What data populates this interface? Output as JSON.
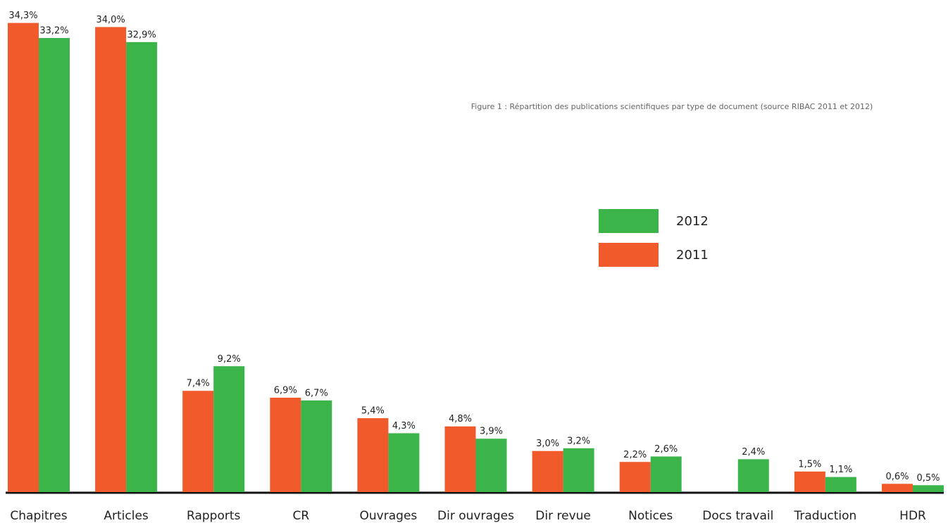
{
  "chart_data": {
    "type": "bar",
    "title": "Figure 1 : Répartition des publications scientifiques par type de document (source RIBAC 2011 et 2012)",
    "categories": [
      "Chapitres",
      "Articles",
      "Rapports",
      "CR",
      "Ouvrages",
      "Dir ouvrages",
      "Dir revue",
      "Notices",
      "Docs travail",
      "Traduction",
      "HDR"
    ],
    "series": [
      {
        "name": "2011",
        "color": "#f15a2b",
        "values": [
          34.3,
          34.0,
          7.4,
          6.9,
          5.4,
          4.8,
          3.0,
          2.2,
          null,
          1.5,
          0.6
        ],
        "value_labels": [
          "34,3%",
          "34,0%",
          "7,4%",
          "6,9%",
          "5,4%",
          "4,8%",
          "3,0%",
          "2,2%",
          null,
          "1,5%",
          "0,6%"
        ]
      },
      {
        "name": "2012",
        "color": "#3bb54a",
        "values": [
          33.2,
          32.9,
          9.2,
          6.7,
          4.3,
          3.9,
          3.2,
          2.6,
          2.4,
          1.1,
          0.5
        ],
        "value_labels": [
          "33,2%",
          "32,9%",
          "9,2%",
          "6,7%",
          "4,3%",
          "3,9%",
          "3,2%",
          "2,6%",
          "2,4%",
          "1,1%",
          "0,5%"
        ]
      }
    ],
    "ylim": [
      0,
      35
    ]
  }
}
